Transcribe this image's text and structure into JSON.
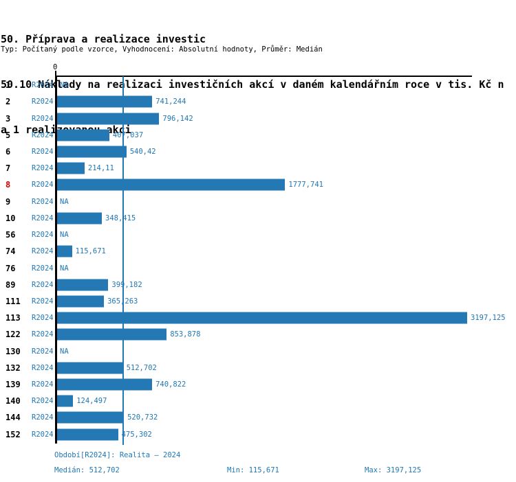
{
  "title": {
    "line1": "50. Příprava a realizace investic",
    "line2": "50.10 Náklady na realizaci investičních akcí v daném kalendářním roce v tis. Kč n",
    "line3": "a 1 realizovanou akci",
    "subtitle": "Typ: Počítaný podle vzorce, Vyhodnocení: Absolutní hodnoty, Průměr: Medián"
  },
  "chart_data": {
    "type": "bar",
    "orientation": "horizontal",
    "axis_zero_label": "0",
    "period_label": "R2024",
    "na_label": "NA",
    "xlim": [
      0,
      3197.125
    ],
    "median_value": 512.702,
    "median_line_shown": true,
    "rows": [
      {
        "id": "1",
        "value": null,
        "label": "NA"
      },
      {
        "id": "2",
        "value": 741.244,
        "label": "741,244"
      },
      {
        "id": "3",
        "value": 796.142,
        "label": "796,142"
      },
      {
        "id": "5",
        "value": 407.037,
        "label": "407,037"
      },
      {
        "id": "6",
        "value": 540.42,
        "label": "540,42"
      },
      {
        "id": "7",
        "value": 214.11,
        "label": "214,11"
      },
      {
        "id": "8",
        "value": 1777.741,
        "label": "1777,741",
        "highlight": true
      },
      {
        "id": "9",
        "value": null,
        "label": "NA"
      },
      {
        "id": "10",
        "value": 348.415,
        "label": "348,415"
      },
      {
        "id": "56",
        "value": null,
        "label": "NA"
      },
      {
        "id": "74",
        "value": 115.671,
        "label": "115,671"
      },
      {
        "id": "76",
        "value": null,
        "label": "NA"
      },
      {
        "id": "89",
        "value": 399.182,
        "label": "399,182"
      },
      {
        "id": "111",
        "value": 365.263,
        "label": "365,263"
      },
      {
        "id": "113",
        "value": 3197.125,
        "label": "3197,125"
      },
      {
        "id": "122",
        "value": 853.878,
        "label": "853,878"
      },
      {
        "id": "130",
        "value": null,
        "label": "NA"
      },
      {
        "id": "132",
        "value": 512.702,
        "label": "512,702"
      },
      {
        "id": "139",
        "value": 740.822,
        "label": "740,822"
      },
      {
        "id": "140",
        "value": 124.497,
        "label": "124,497"
      },
      {
        "id": "144",
        "value": 520.732,
        "label": "520,732"
      },
      {
        "id": "152",
        "value": 475.302,
        "label": "475,302"
      }
    ]
  },
  "footer": {
    "period_line": "Období[R2024]: Realita – 2024",
    "median": "Medián: 512,702",
    "min": "Min: 115,671",
    "max": "Max: 3197,125"
  },
  "colors": {
    "bar": "#2478b4",
    "text_blue": "#2077b4",
    "highlight_red": "#d40000",
    "axis_black": "#000000"
  }
}
